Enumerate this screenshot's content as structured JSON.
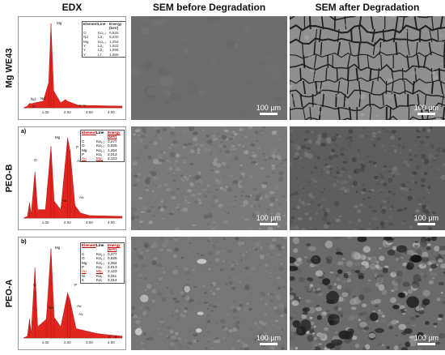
{
  "headers": {
    "edx": "EDX",
    "sem_before": "SEM before Degradation",
    "sem_after": "SEM after Degradation"
  },
  "rows": [
    {
      "label": "Mg WE43",
      "panel_letter": "",
      "scale_label": "100 µm",
      "table": {
        "headers": [
          "Element",
          "Line",
          "Energy (keV)"
        ],
        "rows": [
          [
            "O",
            "Kα₁,₂",
            "0,525"
          ],
          [
            "Nd",
            "Lα₁",
            "5,230"
          ],
          [
            "Mg",
            "Kα₁,₂",
            "1,254"
          ],
          [
            "Y",
            "Lα₁",
            "1,922"
          ],
          [
            "Y",
            "Lβ₁",
            "1,996"
          ],
          [
            "Y",
            "Lℓ",
            "1,686"
          ]
        ],
        "highlight_rows": []
      },
      "peak_labels": [
        "Mg",
        "Nd",
        "O",
        "Nd",
        "Y",
        "Y"
      ],
      "axis_ticks": [
        "1.00",
        "2.00",
        "3.00",
        "4.00"
      ]
    },
    {
      "label": "PEO-B",
      "panel_letter": "a)",
      "scale_label": "100 µm",
      "table": {
        "headers": [
          "Element",
          "Line",
          "Energy (keV)"
        ],
        "rows": [
          [
            "C",
            "Kα₁,₂",
            "0,277"
          ],
          [
            "O",
            "Kα₁,₂",
            "0,525"
          ],
          [
            "Mg",
            "Kα₁,₂",
            "1,254"
          ],
          [
            "P",
            "Kα₁",
            "2,013"
          ],
          [
            "Au",
            "Mα₁",
            "2,123"
          ]
        ],
        "highlight_rows": [
          4
        ]
      },
      "peak_labels": [
        "Mg",
        "P",
        "O",
        "Au",
        "Au",
        "Au"
      ],
      "axis_ticks": [
        "1.00",
        "2.00",
        "3.00",
        "4.00"
      ]
    },
    {
      "label": "PEO-A",
      "panel_letter": "b)",
      "scale_label": "100 µm",
      "table": {
        "headers": [
          "Element",
          "Line",
          "Energy (keV)"
        ],
        "rows": [
          [
            "C",
            "Kα₁,₂",
            "0,277"
          ],
          [
            "O",
            "Kα₁,₂",
            "0,525"
          ],
          [
            "Mg",
            "Kα₁,₂",
            "1,254"
          ],
          [
            "P",
            "Kα₁",
            "2,013"
          ],
          [
            "Au",
            "Mα₁",
            "2,123"
          ],
          [
            "Si",
            "Kα₁",
            "3,311"
          ],
          [
            "K",
            "Kα₁",
            "3,314"
          ]
        ],
        "highlight_rows": [
          4
        ]
      },
      "peak_labels": [
        "Mg",
        "P",
        "O",
        "Na",
        "Au",
        "Au",
        "K",
        "K"
      ],
      "axis_ticks": [
        "1.00",
        "2.00",
        "3.00",
        "4.00"
      ]
    }
  ],
  "colors": {
    "spectrum": "#e0261f",
    "highlight": "#c00000"
  },
  "spectra": [
    [
      [
        0.18,
        0.02
      ],
      [
        0.26,
        0.05
      ],
      [
        0.4,
        0.05
      ],
      [
        0.52,
        0.06
      ],
      [
        0.9,
        0.08
      ],
      [
        1.15,
        0.3
      ],
      [
        1.254,
        1.0
      ],
      [
        1.38,
        0.2
      ],
      [
        1.7,
        0.06
      ],
      [
        1.92,
        0.1
      ],
      [
        2.0,
        0.08
      ],
      [
        2.5,
        0.03
      ],
      [
        4.5,
        0.02
      ]
    ],
    [
      [
        0.18,
        0.02
      ],
      [
        0.277,
        0.18
      ],
      [
        0.35,
        0.05
      ],
      [
        0.525,
        0.55
      ],
      [
        0.65,
        0.1
      ],
      [
        1.0,
        0.1
      ],
      [
        1.254,
        0.85
      ],
      [
        1.4,
        0.2
      ],
      [
        1.7,
        0.1
      ],
      [
        2.013,
        0.95
      ],
      [
        2.123,
        0.8
      ],
      [
        2.35,
        0.15
      ],
      [
        2.6,
        0.06
      ],
      [
        3.0,
        0.03
      ],
      [
        4.5,
        0.02
      ]
    ],
    [
      [
        0.18,
        0.02
      ],
      [
        0.277,
        0.2
      ],
      [
        0.35,
        0.05
      ],
      [
        0.525,
        0.75
      ],
      [
        0.65,
        0.12
      ],
      [
        1.04,
        0.2
      ],
      [
        1.254,
        0.95
      ],
      [
        1.4,
        0.22
      ],
      [
        1.7,
        0.12
      ],
      [
        2.013,
        0.48
      ],
      [
        2.123,
        0.4
      ],
      [
        2.4,
        0.1
      ],
      [
        3.311,
        0.05
      ],
      [
        3.6,
        0.04
      ],
      [
        4.5,
        0.02
      ]
    ]
  ]
}
